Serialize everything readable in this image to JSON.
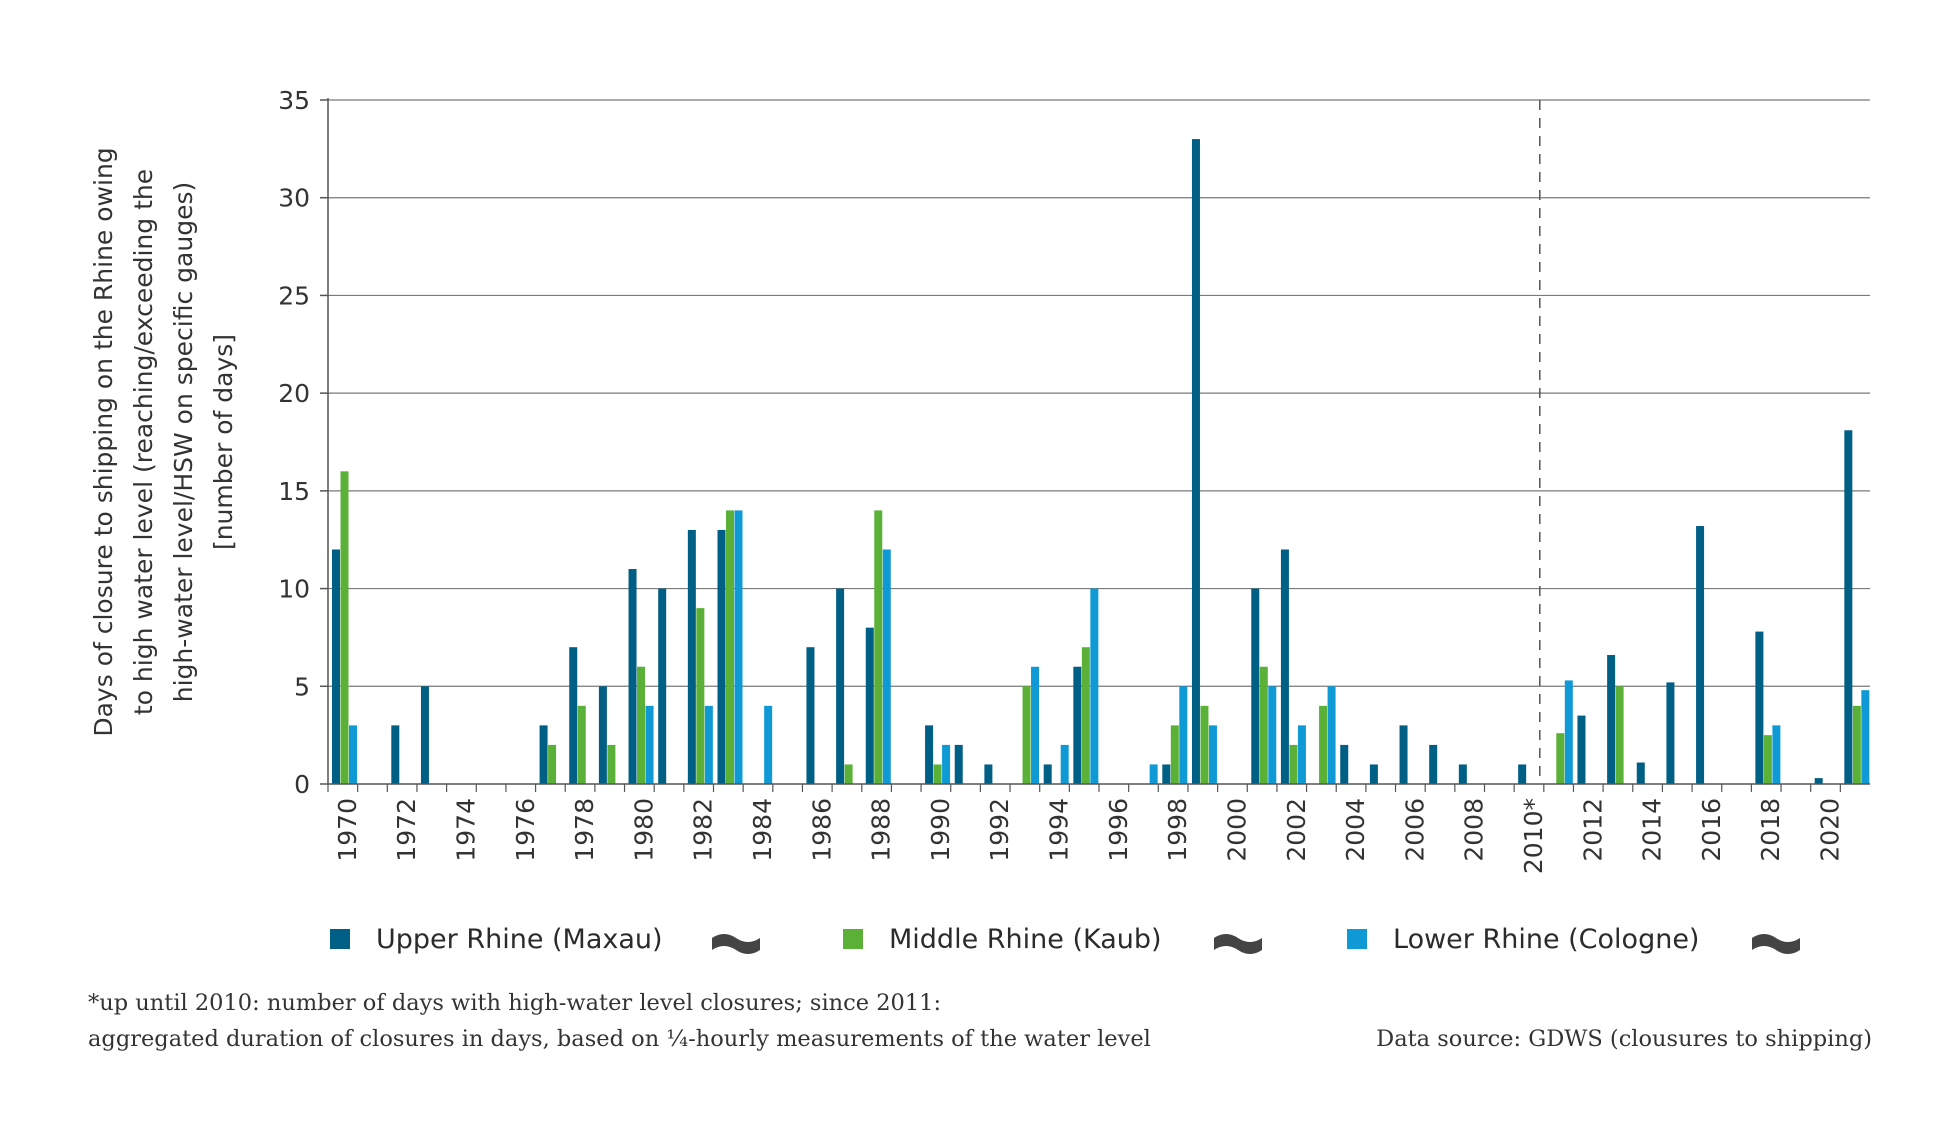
{
  "chart_data": {
    "type": "bar",
    "title": "",
    "ylabel": [
      "Days of closure to shipping on the Rhine owing",
      "to high water level (reaching/exceeding the",
      "high-water level/HSW on specific gauges)",
      "[number of days]"
    ],
    "xlabel": "",
    "ylim": [
      0,
      35
    ],
    "yticks": [
      "0",
      "5",
      "10",
      "15",
      "20",
      "25",
      "30",
      "35"
    ],
    "grid": true,
    "categories": [
      1970,
      1971,
      1972,
      1973,
      1974,
      1975,
      1976,
      1977,
      1978,
      1979,
      1980,
      1981,
      1982,
      1983,
      1984,
      1985,
      1986,
      1987,
      1988,
      1989,
      1990,
      1991,
      1992,
      1993,
      1994,
      1995,
      1996,
      1997,
      1998,
      1999,
      2000,
      2001,
      2002,
      2003,
      2004,
      2005,
      2006,
      2007,
      2008,
      2009,
      2010,
      2011,
      2012,
      2013,
      2014,
      2015,
      2016,
      2017,
      2018,
      2019,
      2020,
      2021
    ],
    "xtick_labels": [
      "1970",
      "1972",
      "1974",
      "1976",
      "1978",
      "1980",
      "1982",
      "1984",
      "1986",
      "1988",
      "1990",
      "1992",
      "1994",
      "1996",
      "1998",
      "2000",
      "2002",
      "2004",
      "2006",
      "2008",
      "2010*",
      "2012",
      "2014",
      "2016",
      "2018",
      "2020"
    ],
    "divider_after": "2010",
    "series": [
      {
        "name": "Upper Rhine (Maxau)",
        "color": "#005f85",
        "values": [
          12,
          0,
          3,
          5,
          0,
          0,
          0,
          3,
          7,
          5,
          11,
          10,
          13,
          13,
          0,
          0,
          7,
          10,
          8,
          0,
          3,
          2,
          1,
          0,
          1,
          6,
          0,
          0,
          1,
          33,
          0,
          10,
          12,
          0,
          2,
          1,
          3,
          2,
          1,
          0,
          1,
          0,
          3.5,
          6.6,
          1.1,
          5.2,
          13.2,
          0,
          7.8,
          0,
          0.3,
          18.1
        ]
      },
      {
        "name": "Middle Rhine (Kaub)",
        "color": "#5bb138",
        "values": [
          16,
          0,
          0,
          0,
          0,
          0,
          0,
          2,
          4,
          2,
          6,
          0,
          9,
          14,
          0,
          0,
          0,
          1,
          14,
          0,
          1,
          0,
          0,
          5,
          0,
          7,
          0,
          0,
          3,
          4,
          0,
          6,
          2,
          4,
          0,
          0,
          0,
          0,
          0,
          0,
          0,
          2.6,
          0,
          5,
          0,
          0,
          0,
          0,
          2.5,
          0,
          0,
          4
        ]
      },
      {
        "name": "Lower Rhine (Cologne)",
        "color": "#0f9ad6",
        "values": [
          3,
          0,
          0,
          0,
          0,
          0,
          0,
          0,
          0,
          0,
          4,
          0,
          4,
          14,
          4,
          0,
          0,
          0,
          12,
          0,
          2,
          0,
          0,
          6,
          2,
          10,
          0,
          1,
          5,
          3,
          0,
          5,
          3,
          5,
          0,
          0,
          0,
          0,
          0,
          0,
          0,
          5.3,
          0,
          0,
          0,
          0,
          0,
          0,
          3,
          0,
          0,
          4.8
        ]
      }
    ],
    "legend_position": "bottom"
  },
  "notes": {
    "footnote_line1": "*up until 2010: number of days with high-water level closures; since 2011:",
    "footnote_line2": "aggregated duration of closures in days, based on ¼-hourly measurements of the water level",
    "source": "Data source: GDWS (clousures to shipping)"
  }
}
